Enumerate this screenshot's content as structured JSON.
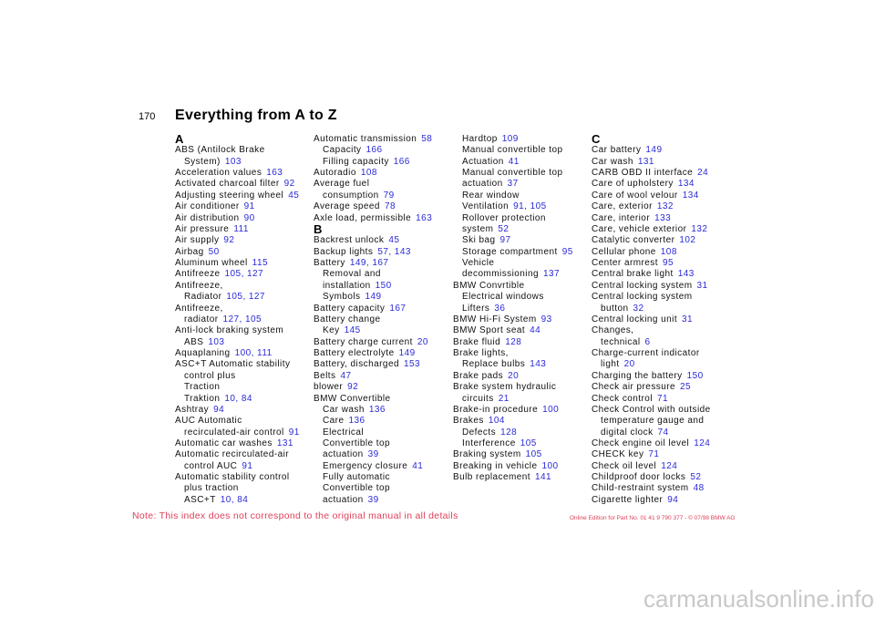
{
  "header": {
    "page_number": "170",
    "title": "Everything from A to Z"
  },
  "columns": [
    [
      {
        "heading": "A"
      },
      {
        "lines": [
          {
            "text": "ABS (Antilock Brake"
          },
          {
            "text": "System)",
            "pages": "103"
          }
        ]
      },
      {
        "lines": [
          {
            "text": "Acceleration values",
            "pages": "163"
          }
        ]
      },
      {
        "lines": [
          {
            "text": "Activated charcoal filter",
            "pages": "92"
          }
        ]
      },
      {
        "lines": [
          {
            "text": "Adjusting steering wheel",
            "pages": "45"
          }
        ]
      },
      {
        "lines": [
          {
            "text": "Air conditioner",
            "pages": "91"
          }
        ]
      },
      {
        "lines": [
          {
            "text": "Air distribution",
            "pages": "90"
          }
        ]
      },
      {
        "lines": [
          {
            "text": "Air pressure",
            "pages": "111"
          }
        ]
      },
      {
        "lines": [
          {
            "text": "Air supply",
            "pages": "92"
          }
        ]
      },
      {
        "lines": [
          {
            "text": "Airbag",
            "pages": "50"
          }
        ]
      },
      {
        "lines": [
          {
            "text": "Aluminum wheel",
            "pages": "115"
          }
        ]
      },
      {
        "lines": [
          {
            "text": "Antifreeze",
            "pages": "105, 127"
          }
        ]
      },
      {
        "lines": [
          {
            "text": "Antifreeze,"
          },
          {
            "text": "Radiator",
            "pages": "105, 127"
          }
        ]
      },
      {
        "lines": [
          {
            "text": "Antifreeze,"
          },
          {
            "text": "radiator",
            "pages": "127, 105"
          }
        ]
      },
      {
        "lines": [
          {
            "text": "Anti-lock braking system"
          },
          {
            "text": "ABS",
            "pages": "103"
          }
        ]
      },
      {
        "lines": [
          {
            "text": "Aquaplaning",
            "pages": "100, 111"
          }
        ]
      },
      {
        "lines": [
          {
            "text": "ASC+T Automatic stability"
          },
          {
            "text": "control plus"
          },
          {
            "text": "Traction"
          },
          {
            "text": "Traktion",
            "pages": "10, 84"
          }
        ]
      },
      {
        "lines": [
          {
            "text": "Ashtray",
            "pages": "94"
          }
        ]
      },
      {
        "lines": [
          {
            "text": "AUC Automatic"
          },
          {
            "text": "recirculated-air control",
            "pages": "91"
          }
        ]
      },
      {
        "lines": [
          {
            "text": "Automatic car washes",
            "pages": "131"
          }
        ]
      },
      {
        "lines": [
          {
            "text": "Automatic recirculated-air"
          },
          {
            "text": "control AUC",
            "pages": "91"
          }
        ]
      },
      {
        "lines": [
          {
            "text": "Automatic stability control"
          },
          {
            "text": "plus traction"
          },
          {
            "text": "ASC+T",
            "pages": "10, 84"
          }
        ]
      }
    ],
    [
      {
        "lines": [
          {
            "text": "Automatic transmission",
            "pages": "58"
          },
          {
            "text": "Capacity",
            "pages": "166"
          },
          {
            "text": "Filling capacity",
            "pages": "166"
          }
        ]
      },
      {
        "lines": [
          {
            "text": "Autoradio",
            "pages": "108"
          }
        ]
      },
      {
        "lines": [
          {
            "text": "Average fuel"
          },
          {
            "text": "consumption",
            "pages": "79"
          }
        ]
      },
      {
        "lines": [
          {
            "text": "Average speed",
            "pages": "78"
          }
        ]
      },
      {
        "lines": [
          {
            "text": "Axle load, permissible",
            "pages": "163"
          }
        ]
      },
      {
        "heading": "B"
      },
      {
        "lines": [
          {
            "text": "Backrest unlock",
            "pages": "45"
          }
        ]
      },
      {
        "lines": [
          {
            "text": "Backup lights",
            "pages": "57, 143"
          }
        ]
      },
      {
        "lines": [
          {
            "text": "Battery",
            "pages": "149, 167"
          },
          {
            "text": "Removal and"
          },
          {
            "text": "installation",
            "pages": "150"
          },
          {
            "text": "Symbols",
            "pages": "149"
          }
        ]
      },
      {
        "lines": [
          {
            "text": "Battery capacity",
            "pages": "167"
          }
        ]
      },
      {
        "lines": [
          {
            "text": "Battery change"
          },
          {
            "text": "Key",
            "pages": "145"
          }
        ]
      },
      {
        "lines": [
          {
            "text": "Battery charge current",
            "pages": "20"
          }
        ]
      },
      {
        "lines": [
          {
            "text": "Battery electrolyte",
            "pages": "149"
          }
        ]
      },
      {
        "lines": [
          {
            "text": "Battery, discharged",
            "pages": "153"
          }
        ]
      },
      {
        "lines": [
          {
            "text": "Belts",
            "pages": "47"
          }
        ]
      },
      {
        "lines": [
          {
            "text": "blower",
            "pages": "92"
          }
        ]
      },
      {
        "lines": [
          {
            "text": "BMW Convertible"
          },
          {
            "text": "Car wash",
            "pages": "136"
          },
          {
            "text": "Care",
            "pages": "136"
          },
          {
            "text": "Electrical"
          },
          {
            "text": "Convertible top"
          },
          {
            "text": "actuation",
            "pages": "39"
          },
          {
            "text": "Emergency closure",
            "pages": "41"
          },
          {
            "text": "Fully automatic"
          },
          {
            "text": "Convertible top"
          },
          {
            "text": "actuation",
            "pages": "39"
          }
        ]
      }
    ],
    [
      {
        "continued": true,
        "lines": [
          {
            "text": "Hardtop",
            "pages": "109"
          },
          {
            "text": "Manual convertible top"
          },
          {
            "text": "Actuation",
            "pages": "41"
          },
          {
            "text": "Manual convertible top"
          },
          {
            "text": "actuation",
            "pages": "37"
          },
          {
            "text": "Rear window"
          },
          {
            "text": "Ventilation",
            "pages": "91, 105"
          },
          {
            "text": "Rollover protection"
          },
          {
            "text": "system",
            "pages": "52"
          },
          {
            "text": "Ski bag",
            "pages": "97"
          },
          {
            "text": "Storage compartment",
            "pages": "95"
          },
          {
            "text": "Vehicle"
          },
          {
            "text": "decommissioning",
            "pages": "137"
          }
        ]
      },
      {
        "lines": [
          {
            "text": "BMW Convrtible"
          },
          {
            "text": "Electrical windows"
          },
          {
            "text": "Lifters",
            "pages": "36"
          }
        ]
      },
      {
        "lines": [
          {
            "text": "BMW Hi-Fi System",
            "pages": "93"
          }
        ]
      },
      {
        "lines": [
          {
            "text": "BMW Sport seat",
            "pages": "44"
          }
        ]
      },
      {
        "lines": [
          {
            "text": "Brake fluid",
            "pages": "128"
          }
        ]
      },
      {
        "lines": [
          {
            "text": "Brake lights,"
          },
          {
            "text": "Replace bulbs",
            "pages": "143"
          }
        ]
      },
      {
        "lines": [
          {
            "text": "Brake pads",
            "pages": "20"
          }
        ]
      },
      {
        "lines": [
          {
            "text": "Brake system hydraulic"
          },
          {
            "text": "circuits",
            "pages": "21"
          }
        ]
      },
      {
        "lines": [
          {
            "text": "Brake-in procedure",
            "pages": "100"
          }
        ]
      },
      {
        "lines": [
          {
            "text": "Brakes",
            "pages": "104"
          },
          {
            "text": "Defects",
            "pages": "128"
          },
          {
            "text": "Interference",
            "pages": "105"
          }
        ]
      },
      {
        "lines": [
          {
            "text": "Braking system",
            "pages": "105"
          }
        ]
      },
      {
        "lines": [
          {
            "text": "Breaking in vehicle",
            "pages": "100"
          }
        ]
      },
      {
        "lines": [
          {
            "text": "Bulb replacement",
            "pages": "141"
          }
        ]
      }
    ],
    [
      {
        "heading": "C"
      },
      {
        "lines": [
          {
            "text": "Car battery",
            "pages": "149"
          }
        ]
      },
      {
        "lines": [
          {
            "text": "Car wash",
            "pages": "131"
          }
        ]
      },
      {
        "lines": [
          {
            "text": "CARB OBD II interface",
            "pages": "24"
          }
        ]
      },
      {
        "lines": [
          {
            "text": "Care of upholstery",
            "pages": "134"
          }
        ]
      },
      {
        "lines": [
          {
            "text": "Care of wool velour",
            "pages": "134"
          }
        ]
      },
      {
        "lines": [
          {
            "text": "Care, exterior",
            "pages": "132"
          }
        ]
      },
      {
        "lines": [
          {
            "text": "Care, interior",
            "pages": "133"
          }
        ]
      },
      {
        "lines": [
          {
            "text": "Care, vehicle exterior",
            "pages": "132"
          }
        ]
      },
      {
        "lines": [
          {
            "text": "Catalytic converter",
            "pages": "102"
          }
        ]
      },
      {
        "lines": [
          {
            "text": "Cellular phone",
            "pages": "108"
          }
        ]
      },
      {
        "lines": [
          {
            "text": "Center armrest",
            "pages": "95"
          }
        ]
      },
      {
        "lines": [
          {
            "text": "Central brake light",
            "pages": "143"
          }
        ]
      },
      {
        "lines": [
          {
            "text": "Central locking system",
            "pages": "31"
          }
        ]
      },
      {
        "lines": [
          {
            "text": "Central locking system"
          },
          {
            "text": "button",
            "pages": "32"
          }
        ]
      },
      {
        "lines": [
          {
            "text": "Central locking unit",
            "pages": "31"
          }
        ]
      },
      {
        "lines": [
          {
            "text": "Changes,"
          },
          {
            "text": "technical",
            "pages": "6"
          }
        ]
      },
      {
        "lines": [
          {
            "text": "Charge-current indicator"
          },
          {
            "text": "light",
            "pages": "20"
          }
        ]
      },
      {
        "lines": [
          {
            "text": "Charging the battery",
            "pages": "150"
          }
        ]
      },
      {
        "lines": [
          {
            "text": "Check air pressure",
            "pages": "25"
          }
        ]
      },
      {
        "lines": [
          {
            "text": "Check control",
            "pages": "71"
          }
        ]
      },
      {
        "lines": [
          {
            "text": "Check Control with outside"
          },
          {
            "text": "temperature gauge and"
          },
          {
            "text": "digital clock",
            "pages": "74"
          }
        ]
      },
      {
        "lines": [
          {
            "text": "Check engine oil level",
            "pages": "124"
          }
        ]
      },
      {
        "lines": [
          {
            "text": "CHECK key",
            "pages": "71"
          }
        ]
      },
      {
        "lines": [
          {
            "text": "Check oil level",
            "pages": "124"
          }
        ]
      },
      {
        "lines": [
          {
            "text": "Childproof door locks",
            "pages": "52"
          }
        ]
      },
      {
        "lines": [
          {
            "text": "Child-restraint system",
            "pages": "48"
          }
        ]
      },
      {
        "lines": [
          {
            "text": "Cigarette lighter",
            "pages": "94"
          }
        ]
      }
    ]
  ],
  "footer": {
    "note": "Note: This index does not correspond to the original manual in all details",
    "edition": "Online Edition for Part No. 01 41 9 790 377 - © 07/98 BMW AG",
    "watermark": "carmanualsonline.info"
  }
}
